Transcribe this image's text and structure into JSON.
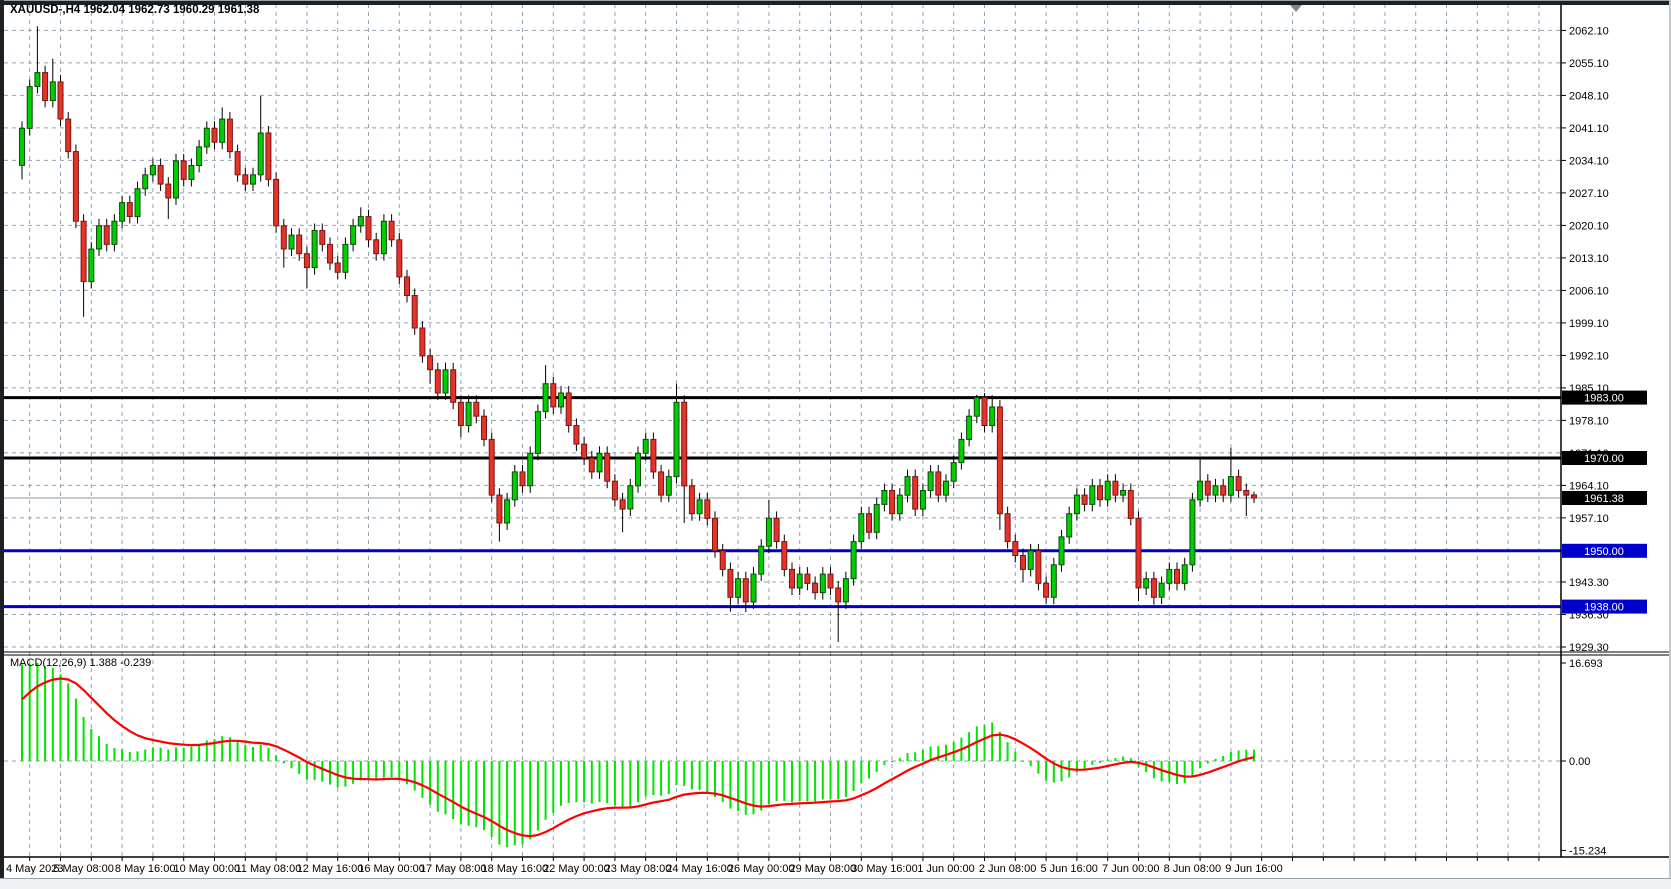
{
  "window": {
    "title": "XAUUSD-,H4 1962.04 1962.73 1960.29 1961.38"
  },
  "colors": {
    "background": "#ffffff",
    "grid": "#93A2B2",
    "bull_fill": "#00CE00",
    "bull_border": "#0A4A0A",
    "bear_fill": "#E4332A",
    "bear_border": "#7A1410",
    "wick": "#000000",
    "hline_black": "#000000",
    "hline_blue": "#0000CC",
    "bid_line": "#8A98A6",
    "badge_black_bg": "#000000",
    "badge_blue_bg": "#0000CC",
    "badge_text": "#ffffff",
    "macd_histogram": "#00E400",
    "macd_signal": "#FF0000",
    "axis_text": "#000000",
    "separator": "#000000",
    "shift_marker": "#7E8791"
  },
  "chart_data": {
    "type": "candlestick+macd",
    "symbol": "XAUUSD-",
    "timeframe": "H4",
    "title_ohlc": {
      "open": "1962.04",
      "high": "1962.73",
      "low": "1960.29",
      "close": "1961.38"
    },
    "price_axis_ticks": [
      "2062.10",
      "2055.10",
      "2048.10",
      "2041.10",
      "2034.10",
      "2027.10",
      "2020.10",
      "2013.10",
      "2006.10",
      "1999.10",
      "1992.10",
      "1985.10",
      "1978.10",
      "1971.10",
      "1964.10",
      "1957.10",
      "1950.10",
      "1943.30",
      "1936.30",
      "1929.30"
    ],
    "hlines": [
      {
        "price": 1983.0,
        "label": "1983.00",
        "color": "#000000",
        "width": 3,
        "label_bg": "#000000"
      },
      {
        "price": 1970.0,
        "label": "1970.00",
        "color": "#000000",
        "width": 3,
        "label_bg": "#000000"
      },
      {
        "price": 1950.0,
        "label": "1950.00",
        "color": "#0000CC",
        "width": 3,
        "label_bg": "#0000CC"
      },
      {
        "price": 1938.0,
        "label": "1938.00",
        "color": "#0000CC",
        "width": 3,
        "label_bg": "#0000CC"
      }
    ],
    "bid": {
      "price": 1961.38,
      "label": "1961.38"
    },
    "time_axis_labels": [
      "4 May 2023",
      "5 May 08:00",
      "8 May 16:00",
      "10 May 00:00",
      "11 May 08:00",
      "12 May 16:00",
      "16 May 00:00",
      "17 May 08:00",
      "18 May 16:00",
      "22 May 00:00",
      "23 May 08:00",
      "24 May 16:00",
      "26 May 00:00",
      "29 May 08:00",
      "30 May 16:00",
      "1 Jun 00:00",
      "2 Jun 08:00",
      "5 Jun 16:00",
      "7 Jun 00:00",
      "8 Jun 08:00",
      "9 Jun 16:00"
    ],
    "label_every_n_candles": 8,
    "macd": {
      "label": "MACD(12,26,9)",
      "value_main": "1.388",
      "value_signal": "-0.239",
      "axis": {
        "max": "16.693",
        "zero": "0.00",
        "min": "-15.234"
      },
      "params": {
        "fast": 12,
        "slow": 26,
        "signal": 9
      },
      "seed": {
        "ema_fast": 2032,
        "ema_slow": 2015,
        "signal": 9
      }
    },
    "candles": [
      [
        2033,
        2042.5,
        2030,
        2041
      ],
      [
        2041,
        2051.5,
        2039.5,
        2050
      ],
      [
        2050,
        2063,
        2048.5,
        2053
      ],
      [
        2053,
        2054.5,
        2045.5,
        2047
      ],
      [
        2047,
        2056,
        2045.5,
        2051
      ],
      [
        2051,
        2052.5,
        2041.5,
        2043
      ],
      [
        2043,
        2044.5,
        2034.5,
        2036
      ],
      [
        2036,
        2037.5,
        2019.5,
        2021
      ],
      [
        2021,
        2022.5,
        2000.4,
        2008
      ],
      [
        2008,
        2016.5,
        2006.5,
        2015
      ],
      [
        2015,
        2021.5,
        2013.5,
        2020
      ],
      [
        2020,
        2021.5,
        2014.5,
        2016
      ],
      [
        2016,
        2022.5,
        2014.5,
        2021
      ],
      [
        2021,
        2026.5,
        2019.5,
        2025
      ],
      [
        2025,
        2026.5,
        2020.5,
        2022
      ],
      [
        2022,
        2029.5,
        2020.5,
        2028
      ],
      [
        2028,
        2032.5,
        2026.5,
        2031
      ],
      [
        2031,
        2034.5,
        2029.5,
        2033
      ],
      [
        2033,
        2034.5,
        2027.5,
        2029
      ],
      [
        2029,
        2030.5,
        2021.5,
        2026
      ],
      [
        2026,
        2035.5,
        2024.5,
        2034
      ],
      [
        2034,
        2035.5,
        2028.5,
        2030
      ],
      [
        2030,
        2034.5,
        2028.5,
        2033
      ],
      [
        2033,
        2038.5,
        2031.5,
        2037
      ],
      [
        2037,
        2042.5,
        2035.5,
        2041
      ],
      [
        2041,
        2042.5,
        2036.5,
        2038
      ],
      [
        2038,
        2045.5,
        2036.5,
        2043
      ],
      [
        2043,
        2044.5,
        2034.5,
        2036
      ],
      [
        2036,
        2037.5,
        2029.5,
        2031
      ],
      [
        2031,
        2032.5,
        2027.5,
        2029
      ],
      [
        2029,
        2032.5,
        2027.5,
        2031
      ],
      [
        2031,
        2048,
        2029.5,
        2040
      ],
      [
        2040,
        2041.5,
        2028.5,
        2030
      ],
      [
        2030,
        2031.5,
        2018.5,
        2020
      ],
      [
        2020,
        2021.5,
        2011,
        2015
      ],
      [
        2015,
        2019.5,
        2013.5,
        2018
      ],
      [
        2018,
        2019.5,
        2012.5,
        2014
      ],
      [
        2014,
        2015.5,
        2006.5,
        2011
      ],
      [
        2011,
        2020.5,
        2009.5,
        2019
      ],
      [
        2019,
        2020.5,
        2014.5,
        2016
      ],
      [
        2016,
        2017.5,
        2010.5,
        2012
      ],
      [
        2012,
        2013.5,
        2008.5,
        2010
      ],
      [
        2010,
        2017.5,
        2008.5,
        2016
      ],
      [
        2016,
        2021.5,
        2014.5,
        2020
      ],
      [
        2020,
        2024,
        2018.5,
        2022
      ],
      [
        2022,
        2023.5,
        2015.5,
        2017
      ],
      [
        2017,
        2018.5,
        2012.5,
        2014
      ],
      [
        2014,
        2022.5,
        2012.5,
        2021
      ],
      [
        2021,
        2022.5,
        2015.5,
        2017
      ],
      [
        2017,
        2018.5,
        2007.5,
        2009
      ],
      [
        2009,
        2010.5,
        2003.5,
        2005
      ],
      [
        2005,
        2006.5,
        1996.5,
        1998
      ],
      [
        1998,
        1999.5,
        1990.5,
        1992
      ],
      [
        1992,
        1993.5,
        1986,
        1989
      ],
      [
        1989,
        1990.5,
        1982.5,
        1984
      ],
      [
        1984,
        1990.5,
        1982.5,
        1989
      ],
      [
        1989,
        1990.5,
        1980.5,
        1982
      ],
      [
        1982,
        1983.5,
        1974.5,
        1977
      ],
      [
        1977,
        1983.5,
        1975.5,
        1982
      ],
      [
        1982,
        1983.5,
        1977.5,
        1979
      ],
      [
        1979,
        1980.5,
        1972.5,
        1974
      ],
      [
        1974,
        1975.5,
        1960.5,
        1962
      ],
      [
        1962,
        1963.5,
        1952,
        1956
      ],
      [
        1956,
        1962.5,
        1954.5,
        1961
      ],
      [
        1961,
        1968.5,
        1959.5,
        1967
      ],
      [
        1967,
        1968.5,
        1962.5,
        1964
      ],
      [
        1964,
        1972.5,
        1962.5,
        1971
      ],
      [
        1971,
        1981.5,
        1969.5,
        1980
      ],
      [
        1980,
        1990,
        1978.5,
        1986
      ],
      [
        1986,
        1987.5,
        1979.5,
        1981
      ],
      [
        1981,
        1985.5,
        1979.5,
        1984
      ],
      [
        1984,
        1985.5,
        1975.5,
        1977
      ],
      [
        1977,
        1978.5,
        1971.5,
        1973
      ],
      [
        1973,
        1974.5,
        1968.5,
        1970
      ],
      [
        1970,
        1971.5,
        1965.5,
        1967
      ],
      [
        1967,
        1972.5,
        1965.5,
        1971
      ],
      [
        1971,
        1972.5,
        1963.5,
        1965
      ],
      [
        1965,
        1966.5,
        1959.5,
        1961
      ],
      [
        1961,
        1962.5,
        1954,
        1959
      ],
      [
        1959,
        1965.5,
        1957.5,
        1964
      ],
      [
        1964,
        1972.5,
        1962.5,
        1971
      ],
      [
        1971,
        1975.5,
        1969.5,
        1974
      ],
      [
        1974,
        1975.5,
        1965.5,
        1967
      ],
      [
        1967,
        1968.5,
        1960.5,
        1962
      ],
      [
        1962,
        1967.5,
        1960.5,
        1966
      ],
      [
        1966,
        1986,
        1964.5,
        1982
      ],
      [
        1982,
        1983.5,
        1956,
        1964
      ],
      [
        1964,
        1965.5,
        1956.5,
        1958
      ],
      [
        1958,
        1962.5,
        1956.5,
        1961
      ],
      [
        1961,
        1962.5,
        1955.5,
        1957
      ],
      [
        1957,
        1958.5,
        1948.5,
        1950
      ],
      [
        1950,
        1951.5,
        1944.5,
        1946
      ],
      [
        1946,
        1947.5,
        1936.9,
        1940
      ],
      [
        1940,
        1945.5,
        1938.5,
        1944
      ],
      [
        1944,
        1945.5,
        1936.8,
        1939
      ],
      [
        1939,
        1946.5,
        1937.5,
        1945
      ],
      [
        1945,
        1952.5,
        1943.5,
        1951
      ],
      [
        1951,
        1961,
        1949.5,
        1957
      ],
      [
        1957,
        1958.5,
        1950.5,
        1952
      ],
      [
        1952,
        1953.5,
        1944.5,
        1946
      ],
      [
        1946,
        1947.5,
        1940.5,
        1942
      ],
      [
        1942,
        1946.5,
        1940.5,
        1945
      ],
      [
        1945,
        1946.5,
        1941.5,
        1943
      ],
      [
        1943,
        1944.5,
        1939.5,
        1941
      ],
      [
        1941,
        1946.5,
        1939.5,
        1945
      ],
      [
        1945,
        1946.5,
        1940.5,
        1942
      ],
      [
        1942,
        1943.5,
        1930.4,
        1939
      ],
      [
        1939,
        1945.5,
        1937.5,
        1944
      ],
      [
        1944,
        1953.5,
        1942.5,
        1952
      ],
      [
        1952,
        1959.5,
        1950.5,
        1958
      ],
      [
        1958,
        1959.5,
        1952.5,
        1954
      ],
      [
        1954,
        1961.5,
        1952.5,
        1960
      ],
      [
        1960,
        1964.5,
        1958.5,
        1963
      ],
      [
        1963,
        1964.5,
        1956.5,
        1958
      ],
      [
        1958,
        1963.5,
        1956.5,
        1962
      ],
      [
        1962,
        1967.5,
        1960.5,
        1966
      ],
      [
        1966,
        1967.5,
        1957.5,
        1959
      ],
      [
        1959,
        1964.5,
        1957.5,
        1963
      ],
      [
        1963,
        1968.5,
        1961.5,
        1967
      ],
      [
        1967,
        1968.5,
        1960.5,
        1962
      ],
      [
        1962,
        1966.5,
        1960.5,
        1965
      ],
      [
        1965,
        1970.5,
        1963.5,
        1969
      ],
      [
        1969,
        1975.5,
        1967.5,
        1974
      ],
      [
        1974,
        1980.5,
        1972.5,
        1979
      ],
      [
        1979,
        1983.6,
        1977.5,
        1983
      ],
      [
        1983,
        1984,
        1975.5,
        1977
      ],
      [
        1977,
        1983.5,
        1975.5,
        1981
      ],
      [
        1981,
        1982.5,
        1954.5,
        1958
      ],
      [
        1958,
        1959.5,
        1950.5,
        1952
      ],
      [
        1952,
        1953.5,
        1947.5,
        1949
      ],
      [
        1949,
        1950.5,
        1943.3,
        1946
      ],
      [
        1946,
        1951.5,
        1944.5,
        1950
      ],
      [
        1950,
        1951.5,
        1941.5,
        1943
      ],
      [
        1943,
        1944.5,
        1938.6,
        1940
      ],
      [
        1940,
        1948.5,
        1938.5,
        1947
      ],
      [
        1947,
        1954.5,
        1945.5,
        1953
      ],
      [
        1953,
        1959.5,
        1951.5,
        1958
      ],
      [
        1958,
        1963.5,
        1956.5,
        1962
      ],
      [
        1962,
        1963.5,
        1958.5,
        1960
      ],
      [
        1960,
        1965.5,
        1958.5,
        1964
      ],
      [
        1964,
        1965.5,
        1959.5,
        1961
      ],
      [
        1961,
        1966.5,
        1959.5,
        1965
      ],
      [
        1965,
        1966.5,
        1960.5,
        1962
      ],
      [
        1962,
        1964.5,
        1960.5,
        1963
      ],
      [
        1963,
        1964.5,
        1955.5,
        1957
      ],
      [
        1957,
        1958.5,
        1939.2,
        1942
      ],
      [
        1942,
        1945.5,
        1940.5,
        1944
      ],
      [
        1944,
        1945.5,
        1938.4,
        1940
      ],
      [
        1940,
        1944.5,
        1938.5,
        1943
      ],
      [
        1943,
        1947.5,
        1941.5,
        1946
      ],
      [
        1946,
        1947.5,
        1941.5,
        1943
      ],
      [
        1943,
        1948.5,
        1941.5,
        1947
      ],
      [
        1947,
        1962.5,
        1945.5,
        1961
      ],
      [
        1961,
        1970,
        1959.5,
        1965
      ],
      [
        1965,
        1966.5,
        1960.5,
        1962
      ],
      [
        1962,
        1965.5,
        1960.5,
        1964
      ],
      [
        1964,
        1965.5,
        1960.5,
        1962
      ],
      [
        1962,
        1972.2,
        1960.5,
        1966
      ],
      [
        1966,
        1967.5,
        1961.5,
        1963
      ],
      [
        1963,
        1964.5,
        1957.5,
        1962
      ],
      [
        1962.04,
        1962.73,
        1960.29,
        1961.38
      ]
    ]
  }
}
